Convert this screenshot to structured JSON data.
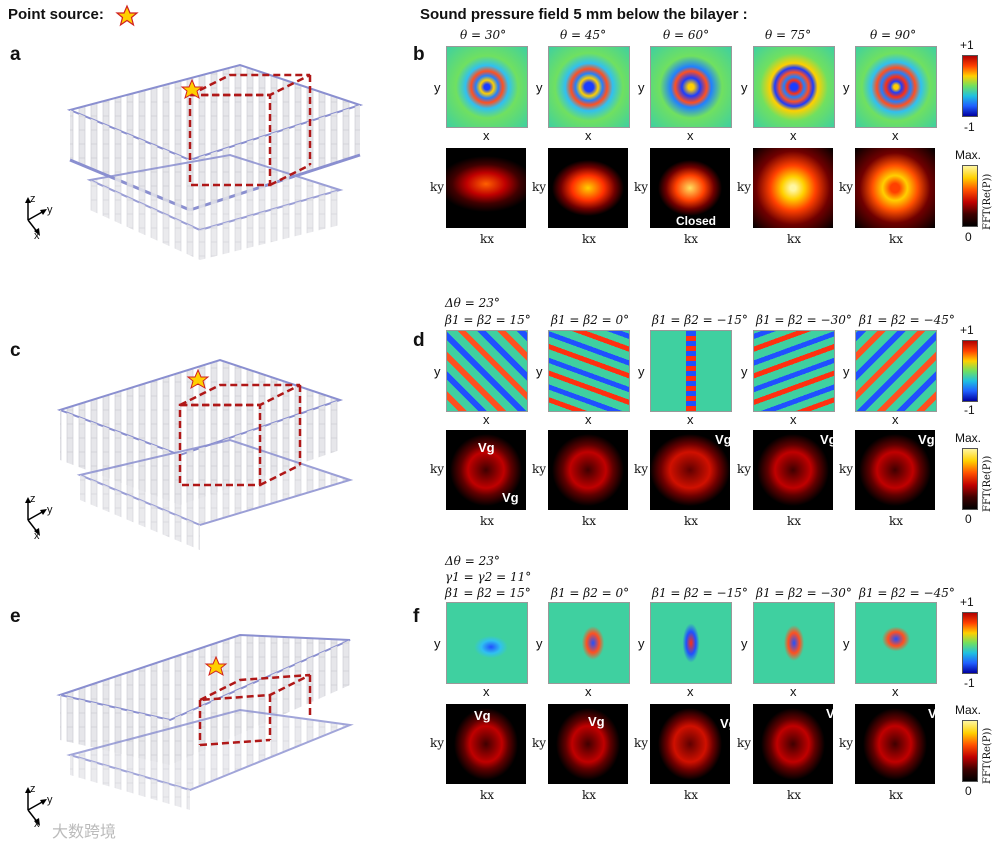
{
  "header": {
    "point_source_label": "Point source:",
    "field_title": "Sound pressure field 5 mm below the bilayer :"
  },
  "panels": {
    "a": "a",
    "b": "b",
    "c": "c",
    "d": "d",
    "e": "e",
    "f": "f"
  },
  "axes_3d": {
    "z": "z",
    "y": "y",
    "x": "x"
  },
  "row_b": {
    "thetas": [
      "θ = 30°",
      "θ = 45°",
      "θ = 60°",
      "θ = 75°",
      "θ = 90°"
    ],
    "closed_label": "Closed"
  },
  "row_d": {
    "delta_theta": "Δθ = 23°",
    "betas": [
      "β1 = β2 = 15°",
      "β1 = β2 = 0°",
      "β1 = β2 = −15°",
      "β1 = β2 = −30°",
      "β1 = β2 = −45°"
    ]
  },
  "row_f": {
    "delta_theta": "Δθ = 23°",
    "gamma": "γ1 = γ2 = 11°",
    "betas": [
      "β1 = β2 = 15°",
      "β1 = β2 = 0°",
      "β1 = β2 = −15°",
      "β1 = β2 = −30°",
      "β1 = β2 = −45°"
    ]
  },
  "axis_labels": {
    "x": "x",
    "y": "y",
    "kx": "kx",
    "ky": "ky",
    "vg": "Vg"
  },
  "colorbar_field": {
    "top": "+1",
    "bottom": "-1"
  },
  "colorbar_fft": {
    "top": "Max.",
    "bottom": "0",
    "label": "FFT(Re(P))"
  },
  "watermark": "大数跨境",
  "colors": {
    "accent_red": "#b01818",
    "star": "#ffd000",
    "lattice": "#8a8fd0"
  }
}
